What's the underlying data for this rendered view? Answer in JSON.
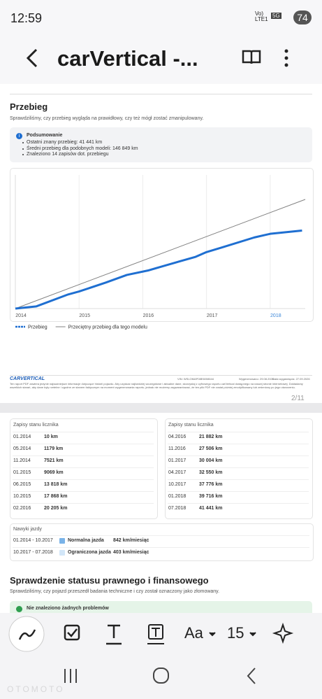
{
  "status_bar": {
    "time": "12:59",
    "network": "Vo) LTE1",
    "signal": "5G",
    "battery": "74"
  },
  "app_bar": {
    "title": "carVertical -..."
  },
  "mileage": {
    "title": "Przebieg",
    "subtitle": "Sprawdziliśmy, czy przebieg wygląda na prawidłowy, czy też mógł zostać zmanipulowany.",
    "summary": {
      "title": "Podsumowanie",
      "items": [
        "Ostatni znany przebieg: 41 441 km",
        "Średni przebieg dla podobnych modeli: 146 849 km",
        "Znaleziono 14 zapisów dot. przebiegu"
      ]
    }
  },
  "chart_data": {
    "type": "line",
    "xlim": [
      2014,
      2018.55
    ],
    "xticks": [
      2014,
      2015,
      2016,
      2017,
      2018
    ],
    "highlight_tick": 2018,
    "highlight_color": "#3a86d8",
    "ylim": [
      0,
      71000
    ],
    "grid": true,
    "series": [
      {
        "name": "Przebieg",
        "color": "#1f6fd1",
        "x": [
          2014,
          2014.33,
          2014.83,
          2015,
          2015.42,
          2015.75,
          2016.08,
          2016.25,
          2016.83,
          2017,
          2017.25,
          2017.75,
          2018,
          2018.5
        ],
        "values": [
          10,
          1179,
          7521,
          9069,
          13818,
          17868,
          20205,
          21882,
          27506,
          30004,
          32550,
          37776,
          39716,
          41441
        ]
      },
      {
        "name": "Przeciętny przebieg dla tego modelu",
        "color": "#808080",
        "x": [
          2014,
          2018.55
        ],
        "values": [
          0,
          58000
        ]
      }
    ]
  },
  "footer": {
    "logo": "CARVERTICAL",
    "vin": "VIN: WSLOMAP08E6008644",
    "generated": "Wygenerowano: 29.08.2026",
    "expires": "Data wygaśnięcia: 27.09.2026",
    "disclaimer": "Ten raport PDF zawiera jedynie najważniejsze informacje dotyczące historii pojazdu. Aby uzyskać najbardziej szczegółowe i aktualne dane, skorzystaj z cyfrowego raportu carVertical dostępnego na naszej stronie internetowej. Dokładamy wszelkich starań, aby dane były rzetelne i zgodne ze stanem faktycznym na moment wygenerowania raportu, jednak nie możemy zagwarantować, że ten plik PDF nie został później zmodyfikowany lub zmieniony po jego utworzeniu.",
    "page": "2/11"
  },
  "odometer_left": {
    "title": "Zapisy stanu licznika",
    "rows": [
      [
        "01.2014",
        "10 km"
      ],
      [
        "05.2014",
        "1179 km"
      ],
      [
        "11.2014",
        "7521 km"
      ],
      [
        "01.2015",
        "9069 km"
      ],
      [
        "06.2015",
        "13 818 km"
      ],
      [
        "10.2015",
        "17 868 km"
      ],
      [
        "02.2016",
        "20 205 km"
      ]
    ]
  },
  "odometer_right": {
    "title": "Zapisy stanu licznika",
    "rows": [
      [
        "04.2016",
        "21 882 km"
      ],
      [
        "11.2016",
        "27 506 km"
      ],
      [
        "01.2017",
        "30 004 km"
      ],
      [
        "04.2017",
        "32 550 km"
      ],
      [
        "10.2017",
        "37 776 km"
      ],
      [
        "01.2018",
        "39 716 km"
      ],
      [
        "07.2018",
        "41 441 km"
      ]
    ]
  },
  "habits": {
    "title": "Nawyki jazdy",
    "rows": [
      [
        "01.2014 - 10.2017",
        "Normalna jazda",
        "842 km/miesiąc"
      ],
      [
        "10.2017 - 07.2018",
        "Ograniczona jazda",
        "403 km/miesiąc"
      ]
    ]
  },
  "legal": {
    "title": "Sprawdzenie statusu prawnego i finansowego",
    "subtitle": "Sprawdziliśmy, czy pojazd przeszedł badania techniczne i czy został oznaczony jako złomowany.",
    "result": "Nie znaleziono żadnych problemów"
  },
  "toolbar": {
    "font": "Aa",
    "size": "15"
  },
  "watermark": "OTOMOTO"
}
